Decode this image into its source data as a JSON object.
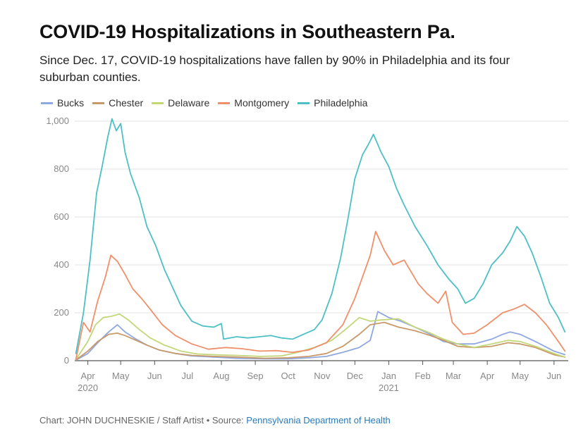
{
  "header": {
    "title": "COVID-19 Hospitalizations in Southeastern Pa.",
    "subtitle": "Since Dec. 17, COVID-19 hospitalizations have fallen by 90% in Philadelphia and its four suburban counties."
  },
  "footer": {
    "credit": "Chart: JOHN DUCHNESKIE / Staff Artist • Source: ",
    "source_link": "Pennsylvania Department of Health",
    "link_color": "#2a7ab8"
  },
  "chart_data": {
    "type": "line",
    "title": "COVID-19 Hospitalizations in Southeastern Pa.",
    "subtitle": "Since Dec. 17, COVID-19 hospitalizations have fallen by 90% in Philadelphia and its four suburban counties.",
    "xlabel": "",
    "ylabel": "",
    "ylim": [
      0,
      1000
    ],
    "xlim": [
      "2020-03-20",
      "2021-06-14"
    ],
    "yticks": [
      0,
      200,
      400,
      600,
      800,
      1000
    ],
    "ytick_labels": [
      "0",
      "200",
      "400",
      "600",
      "800",
      "1,000"
    ],
    "xticks": [
      {
        "date": "2020-04-01",
        "label": "Apr",
        "year": "2020"
      },
      {
        "date": "2020-05-01",
        "label": "May"
      },
      {
        "date": "2020-06-01",
        "label": "Jun"
      },
      {
        "date": "2020-07-01",
        "label": "Jul"
      },
      {
        "date": "2020-08-01",
        "label": "Aug"
      },
      {
        "date": "2020-09-01",
        "label": "Sep"
      },
      {
        "date": "2020-10-01",
        "label": "Oct"
      },
      {
        "date": "2020-11-01",
        "label": "Nov"
      },
      {
        "date": "2020-12-01",
        "label": "Dec"
      },
      {
        "date": "2021-01-01",
        "label": "Jan",
        "year": "2021"
      },
      {
        "date": "2021-02-01",
        "label": "Feb"
      },
      {
        "date": "2021-03-01",
        "label": "Mar"
      },
      {
        "date": "2021-04-01",
        "label": "Apr"
      },
      {
        "date": "2021-05-01",
        "label": "May"
      },
      {
        "date": "2021-06-01",
        "label": "Jun"
      }
    ],
    "grid": true,
    "legend_position": "top-left",
    "series": [
      {
        "name": "Bucks",
        "color": "#8fa8e0",
        "points": [
          [
            "2020-03-21",
            2
          ],
          [
            "2020-04-01",
            30
          ],
          [
            "2020-04-10",
            75
          ],
          [
            "2020-04-20",
            120
          ],
          [
            "2020-04-28",
            150
          ],
          [
            "2020-05-05",
            120
          ],
          [
            "2020-05-15",
            90
          ],
          [
            "2020-05-25",
            65
          ],
          [
            "2020-06-05",
            45
          ],
          [
            "2020-06-20",
            30
          ],
          [
            "2020-07-05",
            20
          ],
          [
            "2020-07-25",
            15
          ],
          [
            "2020-08-15",
            10
          ],
          [
            "2020-09-10",
            8
          ],
          [
            "2020-10-01",
            8
          ],
          [
            "2020-10-20",
            12
          ],
          [
            "2020-11-05",
            18
          ],
          [
            "2020-11-20",
            35
          ],
          [
            "2020-12-05",
            55
          ],
          [
            "2020-12-15",
            85
          ],
          [
            "2020-12-22",
            205
          ],
          [
            "2021-01-01",
            180
          ],
          [
            "2021-01-12",
            165
          ],
          [
            "2021-01-25",
            140
          ],
          [
            "2021-02-08",
            110
          ],
          [
            "2021-02-20",
            80
          ],
          [
            "2021-03-05",
            70
          ],
          [
            "2021-03-20",
            70
          ],
          [
            "2021-04-05",
            90
          ],
          [
            "2021-04-15",
            110
          ],
          [
            "2021-04-22",
            120
          ],
          [
            "2021-05-01",
            110
          ],
          [
            "2021-05-15",
            80
          ],
          [
            "2021-06-01",
            40
          ],
          [
            "2021-06-11",
            25
          ]
        ]
      },
      {
        "name": "Chester",
        "color": "#c8996a",
        "points": [
          [
            "2020-03-21",
            3
          ],
          [
            "2020-04-01",
            40
          ],
          [
            "2020-04-10",
            80
          ],
          [
            "2020-04-20",
            110
          ],
          [
            "2020-04-28",
            115
          ],
          [
            "2020-05-05",
            105
          ],
          [
            "2020-05-15",
            85
          ],
          [
            "2020-05-25",
            65
          ],
          [
            "2020-06-05",
            45
          ],
          [
            "2020-06-20",
            30
          ],
          [
            "2020-07-05",
            22
          ],
          [
            "2020-07-25",
            18
          ],
          [
            "2020-08-15",
            15
          ],
          [
            "2020-09-10",
            10
          ],
          [
            "2020-10-01",
            12
          ],
          [
            "2020-10-20",
            18
          ],
          [
            "2020-11-05",
            30
          ],
          [
            "2020-11-20",
            60
          ],
          [
            "2020-12-05",
            110
          ],
          [
            "2020-12-15",
            150
          ],
          [
            "2020-12-28",
            160
          ],
          [
            "2021-01-10",
            140
          ],
          [
            "2021-01-25",
            125
          ],
          [
            "2021-02-08",
            105
          ],
          [
            "2021-02-20",
            85
          ],
          [
            "2021-03-05",
            60
          ],
          [
            "2021-03-20",
            55
          ],
          [
            "2021-04-05",
            60
          ],
          [
            "2021-04-20",
            75
          ],
          [
            "2021-05-01",
            70
          ],
          [
            "2021-05-15",
            55
          ],
          [
            "2021-06-01",
            25
          ],
          [
            "2021-06-11",
            15
          ]
        ]
      },
      {
        "name": "Delaware",
        "color": "#c2d67a",
        "points": [
          [
            "2020-03-21",
            5
          ],
          [
            "2020-04-01",
            80
          ],
          [
            "2020-04-08",
            150
          ],
          [
            "2020-04-15",
            180
          ],
          [
            "2020-04-22",
            185
          ],
          [
            "2020-04-30",
            195
          ],
          [
            "2020-05-08",
            170
          ],
          [
            "2020-05-18",
            130
          ],
          [
            "2020-05-28",
            95
          ],
          [
            "2020-06-10",
            65
          ],
          [
            "2020-06-25",
            40
          ],
          [
            "2020-07-10",
            28
          ],
          [
            "2020-07-25",
            25
          ],
          [
            "2020-08-15",
            22
          ],
          [
            "2020-09-05",
            18
          ],
          [
            "2020-09-25",
            20
          ],
          [
            "2020-10-10",
            35
          ],
          [
            "2020-10-25",
            55
          ],
          [
            "2020-11-10",
            85
          ],
          [
            "2020-11-25",
            140
          ],
          [
            "2020-12-05",
            180
          ],
          [
            "2020-12-15",
            165
          ],
          [
            "2020-12-25",
            170
          ],
          [
            "2021-01-10",
            175
          ],
          [
            "2021-01-25",
            140
          ],
          [
            "2021-02-08",
            115
          ],
          [
            "2021-02-20",
            90
          ],
          [
            "2021-03-05",
            70
          ],
          [
            "2021-03-20",
            55
          ],
          [
            "2021-04-05",
            70
          ],
          [
            "2021-04-20",
            85
          ],
          [
            "2021-05-01",
            80
          ],
          [
            "2021-05-15",
            60
          ],
          [
            "2021-06-01",
            30
          ],
          [
            "2021-06-11",
            15
          ]
        ]
      },
      {
        "name": "Montgomery",
        "color": "#f0906a",
        "points": [
          [
            "2020-03-21",
            5
          ],
          [
            "2020-03-28",
            160
          ],
          [
            "2020-04-03",
            120
          ],
          [
            "2020-04-10",
            250
          ],
          [
            "2020-04-17",
            350
          ],
          [
            "2020-04-22",
            440
          ],
          [
            "2020-04-28",
            415
          ],
          [
            "2020-05-05",
            360
          ],
          [
            "2020-05-12",
            300
          ],
          [
            "2020-05-20",
            260
          ],
          [
            "2020-05-28",
            215
          ],
          [
            "2020-06-08",
            150
          ],
          [
            "2020-06-20",
            105
          ],
          [
            "2020-07-05",
            70
          ],
          [
            "2020-07-20",
            48
          ],
          [
            "2020-08-05",
            55
          ],
          [
            "2020-08-20",
            50
          ],
          [
            "2020-09-05",
            40
          ],
          [
            "2020-09-20",
            42
          ],
          [
            "2020-10-05",
            35
          ],
          [
            "2020-10-20",
            45
          ],
          [
            "2020-11-05",
            75
          ],
          [
            "2020-11-20",
            150
          ],
          [
            "2020-12-01",
            260
          ],
          [
            "2020-12-08",
            350
          ],
          [
            "2020-12-15",
            440
          ],
          [
            "2020-12-20",
            540
          ],
          [
            "2020-12-28",
            460
          ],
          [
            "2021-01-05",
            400
          ],
          [
            "2021-01-15",
            420
          ],
          [
            "2021-01-28",
            320
          ],
          [
            "2021-02-05",
            280
          ],
          [
            "2021-02-15",
            240
          ],
          [
            "2021-02-22",
            290
          ],
          [
            "2021-02-28",
            160
          ],
          [
            "2021-03-10",
            110
          ],
          [
            "2021-03-20",
            115
          ],
          [
            "2021-04-01",
            150
          ],
          [
            "2021-04-15",
            200
          ],
          [
            "2021-04-25",
            215
          ],
          [
            "2021-05-05",
            235
          ],
          [
            "2021-05-15",
            200
          ],
          [
            "2021-05-25",
            150
          ],
          [
            "2021-06-05",
            80
          ],
          [
            "2021-06-11",
            40
          ]
        ]
      },
      {
        "name": "Philadelphia",
        "color": "#4dbfc6",
        "points": [
          [
            "2020-03-21",
            30
          ],
          [
            "2020-03-28",
            200
          ],
          [
            "2020-04-03",
            420
          ],
          [
            "2020-04-09",
            700
          ],
          [
            "2020-04-14",
            810
          ],
          [
            "2020-04-19",
            930
          ],
          [
            "2020-04-23",
            1010
          ],
          [
            "2020-04-27",
            960
          ],
          [
            "2020-05-01",
            990
          ],
          [
            "2020-05-05",
            870
          ],
          [
            "2020-05-10",
            780
          ],
          [
            "2020-05-18",
            680
          ],
          [
            "2020-05-25",
            560
          ],
          [
            "2020-06-02",
            480
          ],
          [
            "2020-06-10",
            380
          ],
          [
            "2020-06-18",
            300
          ],
          [
            "2020-06-25",
            230
          ],
          [
            "2020-07-05",
            165
          ],
          [
            "2020-07-15",
            145
          ],
          [
            "2020-07-25",
            140
          ],
          [
            "2020-08-01",
            155
          ],
          [
            "2020-08-03",
            90
          ],
          [
            "2020-08-15",
            100
          ],
          [
            "2020-08-25",
            95
          ],
          [
            "2020-09-05",
            100
          ],
          [
            "2020-09-15",
            105
          ],
          [
            "2020-09-25",
            95
          ],
          [
            "2020-10-05",
            90
          ],
          [
            "2020-10-15",
            110
          ],
          [
            "2020-10-25",
            130
          ],
          [
            "2020-11-01",
            170
          ],
          [
            "2020-11-10",
            280
          ],
          [
            "2020-11-18",
            430
          ],
          [
            "2020-11-25",
            600
          ],
          [
            "2020-12-01",
            760
          ],
          [
            "2020-12-08",
            860
          ],
          [
            "2020-12-13",
            900
          ],
          [
            "2020-12-18",
            945
          ],
          [
            "2020-12-25",
            870
          ],
          [
            "2021-01-01",
            810
          ],
          [
            "2021-01-08",
            720
          ],
          [
            "2021-01-15",
            650
          ],
          [
            "2021-01-25",
            560
          ],
          [
            "2021-02-05",
            480
          ],
          [
            "2021-02-15",
            400
          ],
          [
            "2021-02-25",
            340
          ],
          [
            "2021-03-05",
            300
          ],
          [
            "2021-03-12",
            240
          ],
          [
            "2021-03-20",
            260
          ],
          [
            "2021-03-28",
            320
          ],
          [
            "2021-04-05",
            400
          ],
          [
            "2021-04-15",
            450
          ],
          [
            "2021-04-22",
            500
          ],
          [
            "2021-04-28",
            560
          ],
          [
            "2021-05-05",
            520
          ],
          [
            "2021-05-12",
            450
          ],
          [
            "2021-05-20",
            350
          ],
          [
            "2021-05-28",
            240
          ],
          [
            "2021-06-05",
            180
          ],
          [
            "2021-06-11",
            120
          ]
        ]
      }
    ]
  }
}
